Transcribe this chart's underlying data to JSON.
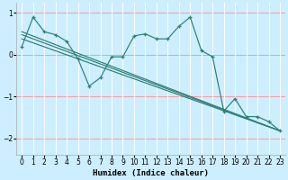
{
  "xlabel": "Humidex (Indice chaleur)",
  "background_color": "#cceeff",
  "line_color": "#2d7f75",
  "grid_color_h": "#ff9999",
  "grid_color_v": "#ffffff",
  "xlim": [
    -0.5,
    23.5
  ],
  "ylim": [
    -2.4,
    1.25
  ],
  "yticks": [
    -2,
    -1,
    0,
    1
  ],
  "xticks": [
    0,
    1,
    2,
    3,
    4,
    5,
    6,
    7,
    8,
    9,
    10,
    11,
    12,
    13,
    14,
    15,
    16,
    17,
    18,
    19,
    20,
    21,
    22,
    23
  ],
  "curve1_x": [
    0,
    1,
    2,
    3,
    4,
    5,
    6,
    7,
    8,
    9,
    10,
    11,
    12,
    13,
    14,
    15,
    16,
    17,
    18,
    19,
    20,
    21,
    22,
    23
  ],
  "curve1_y": [
    0.2,
    0.9,
    0.55,
    0.48,
    0.32,
    -0.1,
    -0.75,
    -0.55,
    -0.05,
    -0.05,
    0.45,
    0.5,
    0.38,
    0.38,
    0.68,
    0.9,
    0.1,
    -0.05,
    -1.35,
    -1.05,
    -1.48,
    -1.48,
    -1.6,
    -1.82
  ],
  "line2_x": [
    0,
    23
  ],
  "line2_y": [
    0.55,
    -1.82
  ],
  "line3_x": [
    0,
    23
  ],
  "line3_y": [
    0.48,
    -1.82
  ],
  "line4_x": [
    0,
    23
  ],
  "line4_y": [
    0.38,
    -1.82
  ]
}
